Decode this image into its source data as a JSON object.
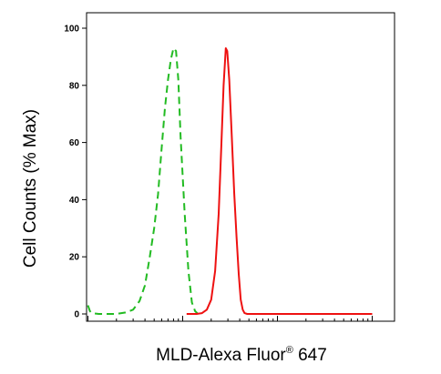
{
  "chart_data": {
    "type": "line",
    "title": "",
    "xlabel": "MLD-Alexa Fluor",
    "xlabel_superscript": "®",
    "xlabel_suffix": " 647",
    "ylabel": "Cell Counts (% Max)",
    "x_scale": "log",
    "ylim": [
      0,
      100
    ],
    "yticks": [
      0,
      20,
      40,
      60,
      80,
      100
    ],
    "grid": false,
    "series": [
      {
        "color": "#22bb22",
        "style": "dashed",
        "points": [
          [
            1.0,
            3.0
          ],
          [
            1.05,
            1.0
          ],
          [
            1.1,
            0.3
          ],
          [
            1.3,
            0.0
          ],
          [
            2.0,
            0.0
          ],
          [
            2.5,
            0.5
          ],
          [
            3.0,
            1.5
          ],
          [
            3.5,
            4.5
          ],
          [
            4.0,
            10.0
          ],
          [
            4.5,
            20.0
          ],
          [
            5.0,
            30.0
          ],
          [
            5.5,
            42.0
          ],
          [
            6.0,
            58.0
          ],
          [
            6.5,
            72.0
          ],
          [
            7.0,
            82.0
          ],
          [
            7.5,
            89.0
          ],
          [
            8.0,
            93.0
          ],
          [
            8.5,
            92.0
          ],
          [
            9.0,
            82.0
          ],
          [
            9.5,
            62.0
          ],
          [
            10.5,
            35.0
          ],
          [
            11.5,
            15.0
          ],
          [
            12.5,
            4.0
          ],
          [
            13.5,
            1.0
          ],
          [
            14.5,
            0.0
          ]
        ]
      },
      {
        "color": "#ee1111",
        "style": "solid",
        "points": [
          [
            11.0,
            0.0
          ],
          [
            14.0,
            0.0
          ],
          [
            16.0,
            0.3
          ],
          [
            18.0,
            1.5
          ],
          [
            20.0,
            5.0
          ],
          [
            22.0,
            15.0
          ],
          [
            24.0,
            35.0
          ],
          [
            25.5,
            58.0
          ],
          [
            27.0,
            80.0
          ],
          [
            28.5,
            93.0
          ],
          [
            29.5,
            92.0
          ],
          [
            31.0,
            82.0
          ],
          [
            33.0,
            62.0
          ],
          [
            35.0,
            42.0
          ],
          [
            37.0,
            27.0
          ],
          [
            39.0,
            14.0
          ],
          [
            41.0,
            5.0
          ],
          [
            43.0,
            1.5
          ],
          [
            45.0,
            0.3
          ],
          [
            48.0,
            0.0
          ],
          [
            1000,
            0.0
          ]
        ]
      }
    ]
  }
}
